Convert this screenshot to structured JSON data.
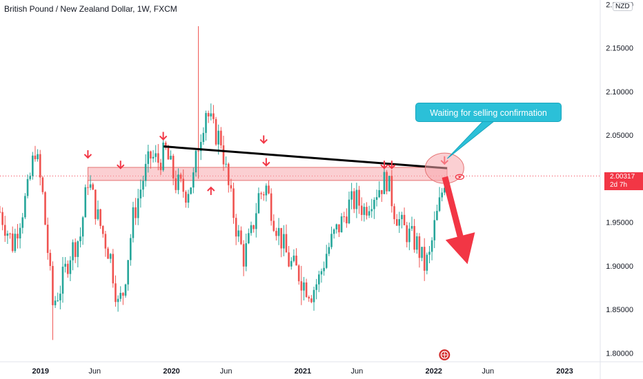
{
  "header": {
    "title": "British Pound / New Zealand Dollar, 1W, FXCM",
    "currency_badge": "NZD"
  },
  "price_tag": {
    "price": "2.00317",
    "countdown": "2d 7h"
  },
  "callout": {
    "text": "Waiting for selling confirmation"
  },
  "colors": {
    "bull": "#26a69a",
    "bear": "#ef5350",
    "zone": "#f7a8ad",
    "callout": "#2bc0d8",
    "arrow": "#f23645",
    "trendline": "#000000"
  },
  "icons": [
    "down-arrow-marker-icon",
    "up-arrow-marker-icon",
    "eye-icon",
    "event-flag-icon"
  ],
  "chart_data": {
    "type": "candlestick",
    "title": "British Pound / New Zealand Dollar, 1W, FXCM",
    "ylim": [
      1.79,
      2.205
    ],
    "y_ticks": [
      "2.20000",
      "2.15000",
      "2.10000",
      "2.05000",
      "2.00000",
      "1.95000",
      "1.90000",
      "1.85000",
      "1.80000"
    ],
    "x_ticks": [
      {
        "label": "2019",
        "date": "2019-01-01",
        "bold": true
      },
      {
        "label": "Jun",
        "date": "2019-06-01",
        "bold": false
      },
      {
        "label": "2020",
        "date": "2020-01-01",
        "bold": true
      },
      {
        "label": "Jun",
        "date": "2020-06-01",
        "bold": false
      },
      {
        "label": "2021",
        "date": "2021-01-01",
        "bold": true
      },
      {
        "label": "Jun",
        "date": "2021-06-01",
        "bold": false
      },
      {
        "label": "2022",
        "date": "2022-01-01",
        "bold": true
      },
      {
        "label": "Jun",
        "date": "2022-06-01",
        "bold": false
      },
      {
        "label": "2023",
        "date": "2023-01-01",
        "bold": true
      }
    ],
    "xlim": [
      "2018-09-10",
      "2023-04-10"
    ],
    "last_price": 2.00317,
    "resistance_zone": {
      "from": "2019-05-13",
      "to": "2022-02-07",
      "low": 1.998,
      "high": 2.013
    },
    "trendline": {
      "start": [
        "2019-12-10",
        2.037
      ],
      "end": [
        "2022-02-07",
        2.012
      ]
    },
    "projection_arrow": {
      "from": [
        "2022-02-01",
        2.002
      ],
      "to": [
        "2022-04-05",
        1.902
      ]
    },
    "markers": [
      {
        "date": "2019-05-13",
        "price": 2.024,
        "dir": "down"
      },
      {
        "date": "2019-08-12",
        "price": 2.012,
        "dir": "down"
      },
      {
        "date": "2019-12-09",
        "price": 2.045,
        "dir": "down"
      },
      {
        "date": "2020-04-20",
        "price": 1.99,
        "dir": "up"
      },
      {
        "date": "2020-09-14",
        "price": 2.041,
        "dir": "down"
      },
      {
        "date": "2020-09-21",
        "price": 2.015,
        "dir": "down"
      },
      {
        "date": "2021-08-16",
        "price": 2.012,
        "dir": "down"
      },
      {
        "date": "2021-09-06",
        "price": 2.012,
        "dir": "down"
      },
      {
        "date": "2022-01-31",
        "price": 2.017,
        "dir": "down"
      }
    ],
    "series": [
      {
        "name": "GBPNZD",
        "anchors": [
          [
            "2018-09-10",
            1.962
          ],
          [
            "2018-10-15",
            1.925
          ],
          [
            "2018-11-26",
            1.985
          ],
          [
            "2018-12-17",
            2.035
          ],
          [
            "2019-01-07",
            1.98
          ],
          [
            "2019-02-04",
            1.855
          ],
          [
            "2019-02-25",
            1.875
          ],
          [
            "2019-03-25",
            1.915
          ],
          [
            "2019-04-22",
            1.935
          ],
          [
            "2019-05-13",
            2.0
          ],
          [
            "2019-06-10",
            1.955
          ],
          [
            "2019-07-15",
            1.91
          ],
          [
            "2019-08-05",
            1.855
          ],
          [
            "2019-08-19",
            1.87
          ],
          [
            "2019-09-16",
            1.955
          ],
          [
            "2019-10-14",
            2.0
          ],
          [
            "2019-11-04",
            2.025
          ],
          [
            "2019-11-25",
            2.02
          ],
          [
            "2019-12-16",
            2.03
          ],
          [
            "2020-01-13",
            1.995
          ],
          [
            "2020-02-10",
            1.985
          ],
          [
            "2020-03-02",
            2.0
          ],
          [
            "2020-03-16",
            2.04
          ],
          [
            "2020-04-06",
            2.08
          ],
          [
            "2020-04-27",
            2.055
          ],
          [
            "2020-05-18",
            2.045
          ],
          [
            "2020-06-08",
            1.99
          ],
          [
            "2020-06-29",
            1.945
          ],
          [
            "2020-07-20",
            1.91
          ],
          [
            "2020-08-10",
            1.935
          ],
          [
            "2020-08-31",
            1.98
          ],
          [
            "2020-09-21",
            1.99
          ],
          [
            "2020-10-12",
            1.955
          ],
          [
            "2020-11-02",
            1.93
          ],
          [
            "2020-11-23",
            1.905
          ],
          [
            "2020-12-14",
            1.895
          ],
          [
            "2021-01-04",
            1.88
          ],
          [
            "2021-01-25",
            1.87
          ],
          [
            "2021-02-15",
            1.885
          ],
          [
            "2021-03-08",
            1.915
          ],
          [
            "2021-03-29",
            1.935
          ],
          [
            "2021-04-19",
            1.95
          ],
          [
            "2021-05-10",
            1.97
          ],
          [
            "2021-05-31",
            1.975
          ],
          [
            "2021-06-21",
            1.965
          ],
          [
            "2021-07-12",
            1.98
          ],
          [
            "2021-08-02",
            1.99
          ],
          [
            "2021-08-23",
            2.0
          ],
          [
            "2021-09-13",
            1.965
          ],
          [
            "2021-10-04",
            1.945
          ],
          [
            "2021-10-25",
            1.935
          ],
          [
            "2021-11-15",
            1.925
          ],
          [
            "2021-12-06",
            1.9
          ],
          [
            "2021-12-20",
            1.91
          ],
          [
            "2022-01-03",
            1.945
          ],
          [
            "2022-01-17",
            1.97
          ],
          [
            "2022-01-31",
            2.0
          ],
          [
            "2022-02-07",
            2.005
          ]
        ]
      }
    ],
    "spikes": [
      {
        "date": "2020-03-16",
        "high": 2.175,
        "low": 2.0
      },
      {
        "date": "2019-02-04",
        "high": 1.9,
        "low": 1.815
      },
      {
        "date": "2020-12-28",
        "high": 1.9,
        "low": 1.855
      }
    ]
  }
}
